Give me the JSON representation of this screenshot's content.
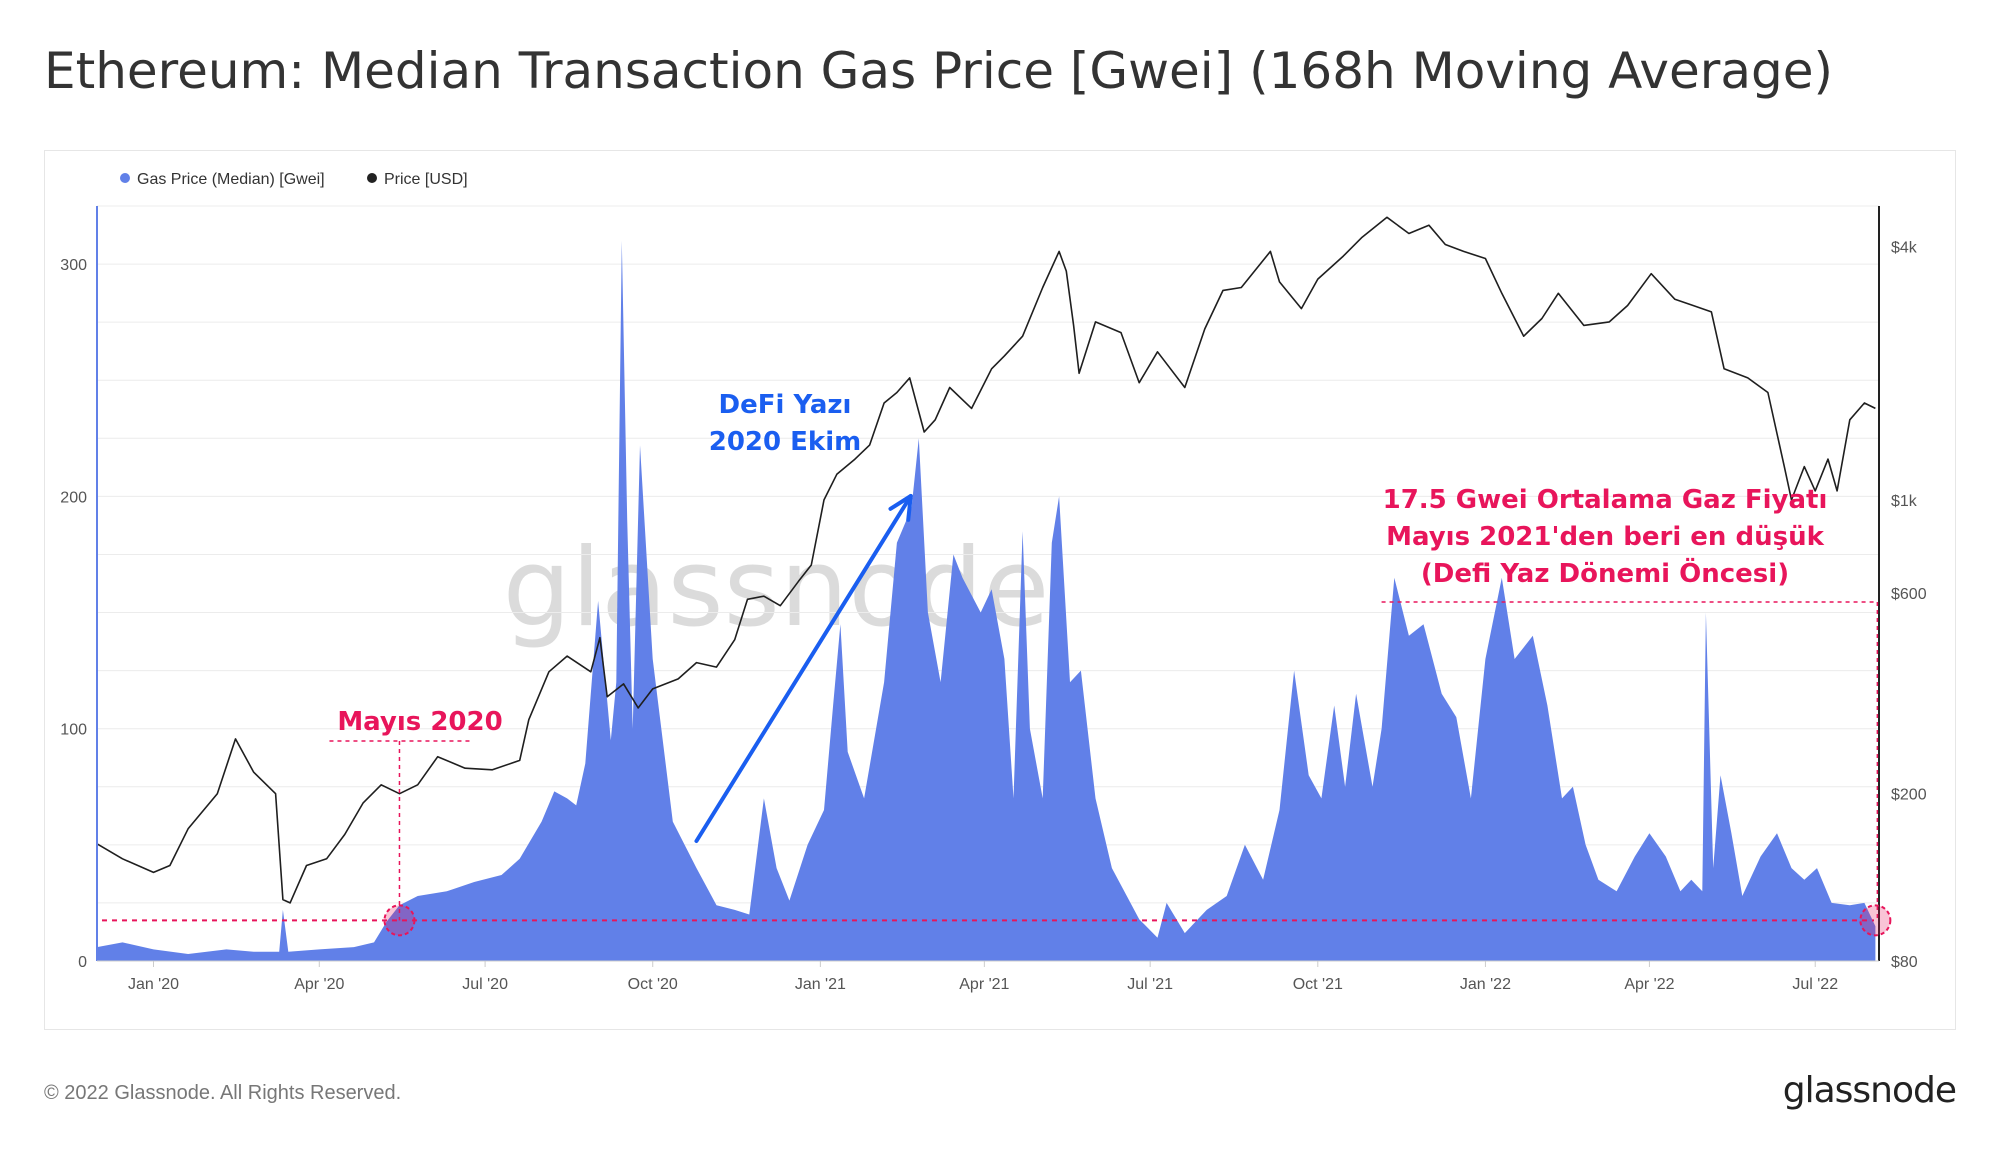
{
  "title": "Ethereum: Median Transaction Gas Price [Gwei] (168h Moving Average)",
  "footer": {
    "copyright": "© 2022 Glassnode. All Rights Reserved.",
    "logo": "glassnode"
  },
  "watermark": "glassnode",
  "legend": [
    {
      "label": "Gas Price (Median) [Gwei]",
      "color": "#6180e8"
    },
    {
      "label": "Price [USD]",
      "color": "#222222"
    }
  ],
  "annotations": {
    "may2020": "Mayıs 2020",
    "defi_line1": "DeFi Yazı",
    "defi_line2": "2020 Ekim",
    "low_line1": "17.5 Gwei Ortalama Gaz Fiyatı",
    "low_line2": "Mayıs 2021'den beri en düşük",
    "low_line3": "(Defi Yaz Dönemi Öncesi)"
  },
  "colors": {
    "gas_fill": "#6180e8",
    "price_line": "#1f1f1f",
    "annotation_pink": "#e8155b",
    "annotation_blue": "#1a5ef0",
    "grid": "#ececec"
  },
  "chart_data": {
    "type": "area",
    "x_range": [
      "2019-12-01",
      "2022-08-05"
    ],
    "x_ticks": [
      {
        "date": "2020-01-01",
        "label": "Jan '20"
      },
      {
        "date": "2020-04-01",
        "label": "Apr '20"
      },
      {
        "date": "2020-07-01",
        "label": "Jul '20"
      },
      {
        "date": "2020-10-01",
        "label": "Oct '20"
      },
      {
        "date": "2021-01-01",
        "label": "Jan '21"
      },
      {
        "date": "2021-04-01",
        "label": "Apr '21"
      },
      {
        "date": "2021-07-01",
        "label": "Jul '21"
      },
      {
        "date": "2021-10-01",
        "label": "Oct '21"
      },
      {
        "date": "2022-01-01",
        "label": "Jan '22"
      },
      {
        "date": "2022-04-01",
        "label": "Apr '22"
      },
      {
        "date": "2022-07-01",
        "label": "Jul '22"
      }
    ],
    "y_left": {
      "ticks": [
        0,
        100,
        200,
        300
      ],
      "range": [
        0,
        325
      ]
    },
    "y_right": {
      "scale": "log",
      "range": [
        80,
        5000
      ],
      "ticks": [
        {
          "value": 80,
          "label": "$80"
        },
        {
          "value": 200,
          "label": "$200"
        },
        {
          "value": 600,
          "label": "$600"
        },
        {
          "value": 1000,
          "label": "$1k"
        },
        {
          "value": 4000,
          "label": "$4k"
        }
      ]
    },
    "series": [
      {
        "name": "Gas Price (Median) [Gwei]",
        "axis": "left",
        "points": [
          [
            "2019-12-01",
            6
          ],
          [
            "2019-12-15",
            8
          ],
          [
            "2020-01-01",
            5
          ],
          [
            "2020-01-20",
            3
          ],
          [
            "2020-02-10",
            5
          ],
          [
            "2020-02-25",
            4
          ],
          [
            "2020-03-10",
            4
          ],
          [
            "2020-03-12",
            22
          ],
          [
            "2020-03-15",
            4
          ],
          [
            "2020-04-01",
            5
          ],
          [
            "2020-04-20",
            6
          ],
          [
            "2020-05-01",
            8
          ],
          [
            "2020-05-08",
            17
          ],
          [
            "2020-05-15",
            24
          ],
          [
            "2020-05-25",
            28
          ],
          [
            "2020-06-10",
            30
          ],
          [
            "2020-06-25",
            34
          ],
          [
            "2020-07-10",
            37
          ],
          [
            "2020-07-20",
            44
          ],
          [
            "2020-08-01",
            60
          ],
          [
            "2020-08-08",
            73
          ],
          [
            "2020-08-15",
            70
          ],
          [
            "2020-08-20",
            67
          ],
          [
            "2020-08-25",
            85
          ],
          [
            "2020-09-01",
            155
          ],
          [
            "2020-09-08",
            95
          ],
          [
            "2020-09-11",
            120
          ],
          [
            "2020-09-14",
            310
          ],
          [
            "2020-09-17",
            190
          ],
          [
            "2020-09-20",
            100
          ],
          [
            "2020-09-24",
            222
          ],
          [
            "2020-10-01",
            130
          ],
          [
            "2020-10-12",
            60
          ],
          [
            "2020-10-25",
            40
          ],
          [
            "2020-11-05",
            24
          ],
          [
            "2020-11-15",
            22
          ],
          [
            "2020-11-23",
            20
          ],
          [
            "2020-12-01",
            70
          ],
          [
            "2020-12-08",
            40
          ],
          [
            "2020-12-15",
            26
          ],
          [
            "2020-12-25",
            50
          ],
          [
            "2021-01-03",
            65
          ],
          [
            "2021-01-08",
            110
          ],
          [
            "2021-01-12",
            145
          ],
          [
            "2021-01-16",
            90
          ],
          [
            "2021-01-25",
            70
          ],
          [
            "2021-02-05",
            120
          ],
          [
            "2021-02-12",
            180
          ],
          [
            "2021-02-20",
            195
          ],
          [
            "2021-02-24",
            225
          ],
          [
            "2021-03-01",
            150
          ],
          [
            "2021-03-08",
            120
          ],
          [
            "2021-03-15",
            175
          ],
          [
            "2021-03-20",
            165
          ],
          [
            "2021-03-30",
            150
          ],
          [
            "2021-04-05",
            160
          ],
          [
            "2021-04-12",
            130
          ],
          [
            "2021-04-17",
            70
          ],
          [
            "2021-04-22",
            185
          ],
          [
            "2021-04-26",
            100
          ],
          [
            "2021-05-03",
            70
          ],
          [
            "2021-05-08",
            180
          ],
          [
            "2021-05-12",
            200
          ],
          [
            "2021-05-18",
            120
          ],
          [
            "2021-05-24",
            125
          ],
          [
            "2021-06-01",
            70
          ],
          [
            "2021-06-10",
            40
          ],
          [
            "2021-06-25",
            18
          ],
          [
            "2021-07-05",
            10
          ],
          [
            "2021-07-10",
            25
          ],
          [
            "2021-07-20",
            12
          ],
          [
            "2021-08-01",
            22
          ],
          [
            "2021-08-12",
            28
          ],
          [
            "2021-08-22",
            50
          ],
          [
            "2021-09-01",
            35
          ],
          [
            "2021-09-10",
            65
          ],
          [
            "2021-09-18",
            125
          ],
          [
            "2021-09-26",
            80
          ],
          [
            "2021-10-03",
            70
          ],
          [
            "2021-10-10",
            110
          ],
          [
            "2021-10-16",
            75
          ],
          [
            "2021-10-22",
            115
          ],
          [
            "2021-10-31",
            75
          ],
          [
            "2021-11-05",
            100
          ],
          [
            "2021-11-12",
            165
          ],
          [
            "2021-11-20",
            140
          ],
          [
            "2021-11-28",
            145
          ],
          [
            "2021-12-08",
            115
          ],
          [
            "2021-12-16",
            105
          ],
          [
            "2021-12-24",
            70
          ],
          [
            "2022-01-01",
            130
          ],
          [
            "2022-01-10",
            165
          ],
          [
            "2022-01-17",
            130
          ],
          [
            "2022-01-27",
            140
          ],
          [
            "2022-02-04",
            110
          ],
          [
            "2022-02-12",
            70
          ],
          [
            "2022-02-18",
            75
          ],
          [
            "2022-02-25",
            50
          ],
          [
            "2022-03-04",
            35
          ],
          [
            "2022-03-14",
            30
          ],
          [
            "2022-03-24",
            45
          ],
          [
            "2022-04-01",
            55
          ],
          [
            "2022-04-10",
            45
          ],
          [
            "2022-04-18",
            30
          ],
          [
            "2022-04-24",
            35
          ],
          [
            "2022-04-30",
            30
          ],
          [
            "2022-05-02",
            150
          ],
          [
            "2022-05-06",
            40
          ],
          [
            "2022-05-10",
            80
          ],
          [
            "2022-05-16",
            55
          ],
          [
            "2022-05-22",
            28
          ],
          [
            "2022-06-01",
            45
          ],
          [
            "2022-06-10",
            55
          ],
          [
            "2022-06-18",
            40
          ],
          [
            "2022-06-25",
            35
          ],
          [
            "2022-07-02",
            40
          ],
          [
            "2022-07-10",
            25
          ],
          [
            "2022-07-20",
            24
          ],
          [
            "2022-07-28",
            25
          ],
          [
            "2022-08-03",
            15
          ]
        ]
      },
      {
        "name": "Price [USD]",
        "axis": "right",
        "points": [
          [
            "2019-12-01",
            152
          ],
          [
            "2019-12-15",
            140
          ],
          [
            "2020-01-01",
            130
          ],
          [
            "2020-01-10",
            135
          ],
          [
            "2020-01-20",
            165
          ],
          [
            "2020-02-05",
            200
          ],
          [
            "2020-02-15",
            270
          ],
          [
            "2020-02-25",
            225
          ],
          [
            "2020-03-08",
            200
          ],
          [
            "2020-03-12",
            112
          ],
          [
            "2020-03-16",
            110
          ],
          [
            "2020-03-25",
            135
          ],
          [
            "2020-04-05",
            140
          ],
          [
            "2020-04-15",
            160
          ],
          [
            "2020-04-25",
            190
          ],
          [
            "2020-05-05",
            210
          ],
          [
            "2020-05-15",
            200
          ],
          [
            "2020-05-25",
            210
          ],
          [
            "2020-06-05",
            245
          ],
          [
            "2020-06-20",
            230
          ],
          [
            "2020-07-05",
            228
          ],
          [
            "2020-07-20",
            240
          ],
          [
            "2020-07-25",
            300
          ],
          [
            "2020-08-05",
            390
          ],
          [
            "2020-08-15",
            425
          ],
          [
            "2020-08-28",
            390
          ],
          [
            "2020-09-02",
            470
          ],
          [
            "2020-09-06",
            340
          ],
          [
            "2020-09-15",
            365
          ],
          [
            "2020-09-23",
            320
          ],
          [
            "2020-10-01",
            355
          ],
          [
            "2020-10-15",
            375
          ],
          [
            "2020-10-25",
            410
          ],
          [
            "2020-11-05",
            400
          ],
          [
            "2020-11-15",
            465
          ],
          [
            "2020-11-22",
            580
          ],
          [
            "2020-12-01",
            590
          ],
          [
            "2020-12-10",
            560
          ],
          [
            "2020-12-20",
            640
          ],
          [
            "2020-12-27",
            700
          ],
          [
            "2021-01-03",
            1000
          ],
          [
            "2021-01-10",
            1150
          ],
          [
            "2021-01-20",
            1250
          ],
          [
            "2021-01-28",
            1350
          ],
          [
            "2021-02-05",
            1700
          ],
          [
            "2021-02-12",
            1800
          ],
          [
            "2021-02-19",
            1950
          ],
          [
            "2021-02-27",
            1450
          ],
          [
            "2021-03-05",
            1550
          ],
          [
            "2021-03-13",
            1850
          ],
          [
            "2021-03-25",
            1650
          ],
          [
            "2021-04-05",
            2050
          ],
          [
            "2021-04-12",
            2200
          ],
          [
            "2021-04-22",
            2450
          ],
          [
            "2021-05-03",
            3200
          ],
          [
            "2021-05-12",
            3900
          ],
          [
            "2021-05-16",
            3500
          ],
          [
            "2021-05-20",
            2600
          ],
          [
            "2021-05-23",
            2000
          ],
          [
            "2021-06-01",
            2650
          ],
          [
            "2021-06-15",
            2500
          ],
          [
            "2021-06-25",
            1900
          ],
          [
            "2021-07-05",
            2250
          ],
          [
            "2021-07-20",
            1850
          ],
          [
            "2021-07-31",
            2550
          ],
          [
            "2021-08-10",
            3150
          ],
          [
            "2021-08-20",
            3200
          ],
          [
            "2021-09-05",
            3900
          ],
          [
            "2021-09-10",
            3300
          ],
          [
            "2021-09-22",
            2850
          ],
          [
            "2021-10-01",
            3350
          ],
          [
            "2021-10-15",
            3800
          ],
          [
            "2021-10-25",
            4200
          ],
          [
            "2021-11-08",
            4700
          ],
          [
            "2021-11-20",
            4300
          ],
          [
            "2021-12-01",
            4500
          ],
          [
            "2021-12-10",
            4050
          ],
          [
            "2021-12-20",
            3900
          ],
          [
            "2022-01-01",
            3750
          ],
          [
            "2022-01-10",
            3100
          ],
          [
            "2022-01-22",
            2450
          ],
          [
            "2022-02-01",
            2700
          ],
          [
            "2022-02-10",
            3100
          ],
          [
            "2022-02-24",
            2600
          ],
          [
            "2022-03-10",
            2650
          ],
          [
            "2022-03-20",
            2900
          ],
          [
            "2022-04-02",
            3450
          ],
          [
            "2022-04-15",
            3000
          ],
          [
            "2022-04-25",
            2900
          ],
          [
            "2022-05-05",
            2800
          ],
          [
            "2022-05-12",
            2050
          ],
          [
            "2022-05-25",
            1950
          ],
          [
            "2022-06-05",
            1800
          ],
          [
            "2022-06-14",
            1200
          ],
          [
            "2022-06-18",
            1000
          ],
          [
            "2022-06-25",
            1200
          ],
          [
            "2022-07-01",
            1050
          ],
          [
            "2022-07-08",
            1250
          ],
          [
            "2022-07-13",
            1050
          ],
          [
            "2022-07-20",
            1550
          ],
          [
            "2022-07-28",
            1700
          ],
          [
            "2022-08-03",
            1650
          ]
        ]
      }
    ],
    "reference_line": {
      "value": 17.5,
      "axis": "left"
    }
  }
}
